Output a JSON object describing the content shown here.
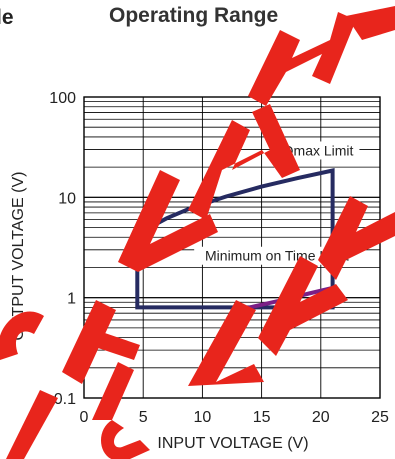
{
  "header": {
    "fragment_text": "le",
    "title": "Operating Range"
  },
  "colors": {
    "envelope": "#262b61",
    "min_on_time": "#7b1f86",
    "grid": "#000000",
    "watermark": "#e8251c"
  },
  "chart_data": {
    "type": "line",
    "title": "Operating Range",
    "xlabel": "INPUT VOLTAGE (V)",
    "ylabel": "OUTPUT VOLTAGE (V)",
    "xlim": [
      0,
      25
    ],
    "ylim": [
      0.1,
      100
    ],
    "yscale": "log",
    "grid": true,
    "x_ticks": [
      0,
      5,
      10,
      15,
      20,
      25
    ],
    "x_tick_labels": [
      "0",
      "5",
      "10",
      "15",
      "20",
      "25"
    ],
    "y_ticks": [
      0.1,
      1,
      10,
      100
    ],
    "y_tick_labels": [
      "0.1",
      "1",
      "10",
      "100"
    ],
    "series": [
      {
        "key": "envelope",
        "x": [
          4.5,
          4.5,
          7,
          9,
          12,
          15,
          18,
          21,
          21,
          4.5
        ],
        "y": [
          0.8,
          4.3,
          6.2,
          7.8,
          10.2,
          12.8,
          15.5,
          18.5,
          0.8,
          0.8
        ]
      },
      {
        "key": "min_on_time",
        "x": [
          14,
          17,
          19,
          21
        ],
        "y": [
          0.8,
          0.96,
          1.1,
          1.25
        ]
      }
    ],
    "annotations": [
      {
        "text": "Dmax Limit",
        "x": 19.8,
        "y": 28
      },
      {
        "text": "Minimum on Time Limit",
        "x": 16.3,
        "y": 2.5
      }
    ]
  }
}
